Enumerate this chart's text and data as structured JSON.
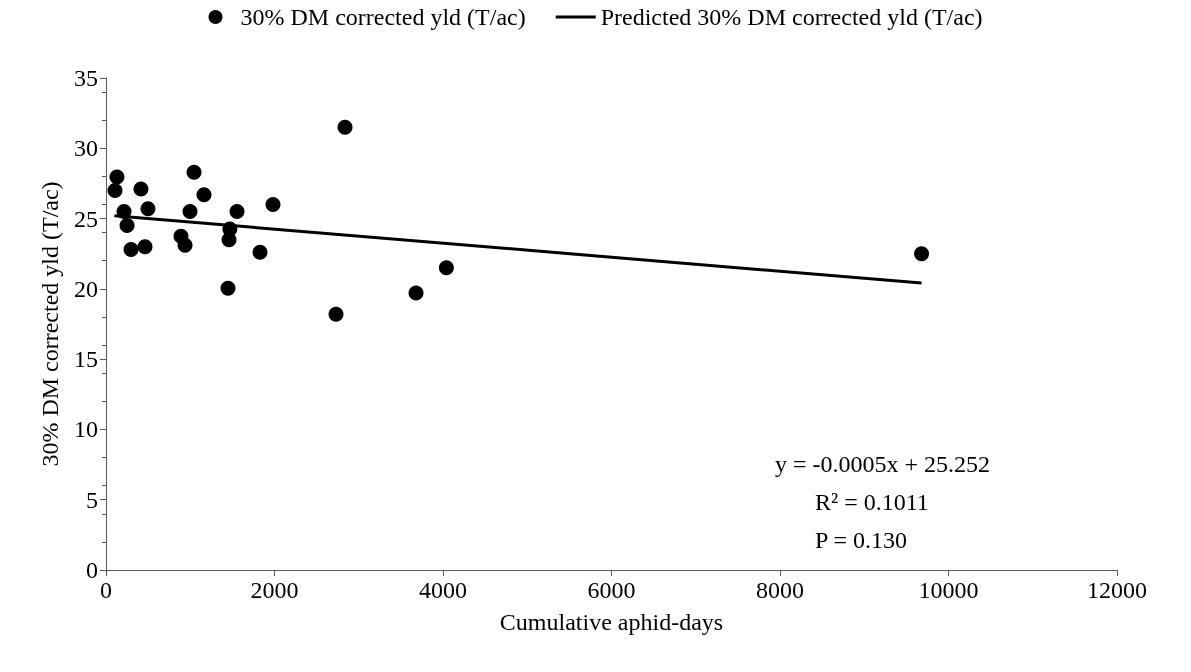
{
  "chart_data": {
    "type": "scatter",
    "xlabel": "Cumulative aphid-days",
    "ylabel": "30% DM corrected yld (T/ac)",
    "xlim": [
      0,
      12000
    ],
    "xticks": [
      0,
      2000,
      4000,
      6000,
      8000,
      10000,
      12000
    ],
    "ylim": [
      0,
      35
    ],
    "yticks": [
      0,
      5,
      10,
      15,
      20,
      25,
      30,
      35
    ],
    "grid": false,
    "legend": "top",
    "marker": "circle",
    "series": [
      {
        "name": "30% DM corrected yld (T/ac)",
        "color": "#000000",
        "x": [
          130,
          107,
          214,
          250,
          297,
          415,
          463,
          498,
          890,
          938,
          997,
          1045,
          1163,
          1460,
          1470,
          1448,
          1555,
          1828,
          1982,
          2730,
          2837,
          3680,
          4040,
          9680
        ],
        "values": [
          27.95,
          27.0,
          25.5,
          24.5,
          22.8,
          27.1,
          23.0,
          25.7,
          23.75,
          23.1,
          25.5,
          28.3,
          26.7,
          23.5,
          24.25,
          20.05,
          25.5,
          22.6,
          26.0,
          18.2,
          31.5,
          19.7,
          21.5,
          22.5
        ]
      },
      {
        "name": "Predicted 30% DM corrected yld (T/ac)",
        "type": "line",
        "color": "#000000",
        "marker": "none",
        "line_style": "solid",
        "x": [
          100,
          9680
        ],
        "values": [
          25.2,
          20.41
        ]
      }
    ],
    "annotations": [
      "y = -0.0005x + 25.252",
      "R² = 0.1011",
      "P = 0.130"
    ]
  }
}
